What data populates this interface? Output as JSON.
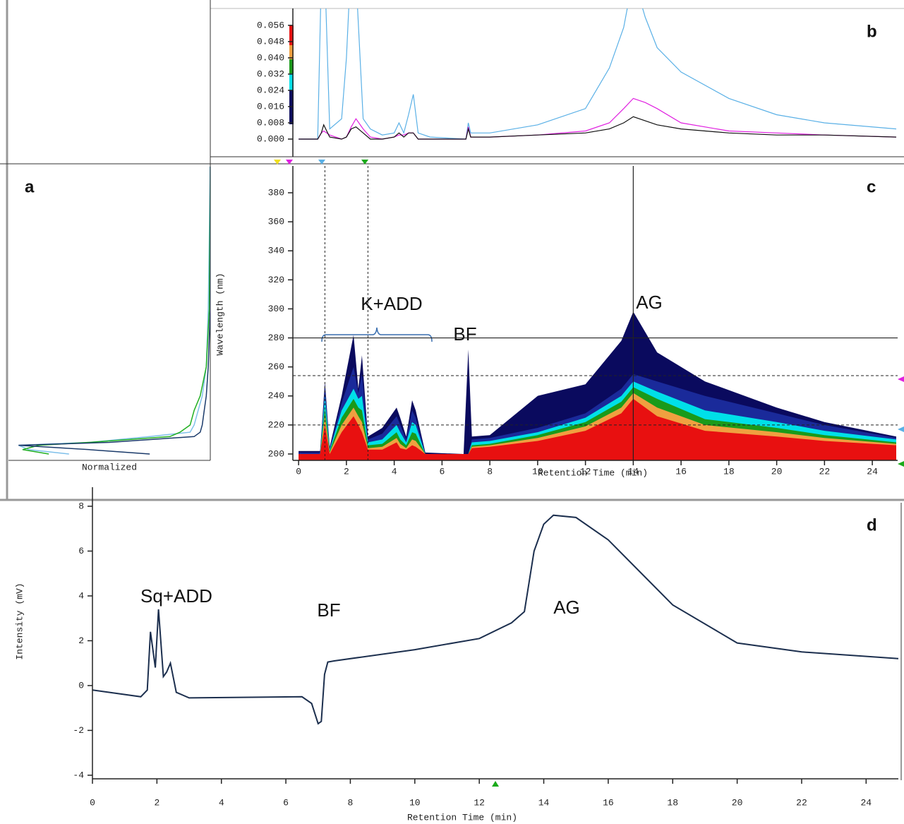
{
  "chart_data": [
    {
      "type": "spectrum",
      "label": "a",
      "xlabel": "Normalized",
      "xlim": [
        1,
        0
      ],
      "ylim": [
        195.6,
        398.5
      ],
      "y": [
        200,
        203,
        206,
        208,
        212,
        215,
        220,
        230,
        240,
        260,
        300,
        398
      ],
      "series": [
        {
          "color": "#7fc0ea",
          "values": [
            0.7,
            0.9,
            0.95,
            0.6,
            0.3,
            0.1,
            0.08,
            0.06,
            0.04,
            0.02,
            0.01,
            0
          ]
        },
        {
          "color": "#22b022",
          "values": [
            0.8,
            0.93,
            0.85,
            0.6,
            0.2,
            0.15,
            0.1,
            0.08,
            0.05,
            0.02,
            0.005,
            0
          ]
        },
        {
          "color": "#1a3a6a",
          "values": [
            0.3,
            0.6,
            0.95,
            0.5,
            0.08,
            0.05,
            0.04,
            0.03,
            0.02,
            0.01,
            0,
            0
          ]
        }
      ]
    },
    {
      "type": "line",
      "label": "b",
      "xlim": [
        -0.24,
        25.06
      ],
      "ylim": [
        -0.0087,
        0.0643
      ],
      "yticks": [
        {
          "value": 0,
          "label": "0.000"
        },
        {
          "value": 0.008,
          "label": "0.008"
        },
        {
          "value": 0.016,
          "label": "0.016"
        },
        {
          "value": 0.024,
          "label": "0.024"
        },
        {
          "value": 0.032,
          "label": "0.032"
        },
        {
          "value": 0.04,
          "label": "0.040"
        },
        {
          "value": 0.048,
          "label": "0.048"
        },
        {
          "value": 0.056,
          "label": "0.056"
        }
      ],
      "x": [
        0,
        0.8,
        0.95,
        1.05,
        1.3,
        1.8,
        2.0,
        2.2,
        2.4,
        2.7,
        3,
        3.5,
        4.0,
        4.2,
        4.4,
        4.6,
        4.8,
        5.0,
        5.5,
        7.0,
        7.1,
        7.2,
        8,
        10,
        12,
        13,
        13.6,
        14,
        14.5,
        15,
        16,
        18,
        20,
        22,
        25
      ],
      "series": [
        {
          "color": "#5ab0e6",
          "values": [
            0,
            0,
            0.08,
            0.1,
            0.005,
            0.01,
            0.04,
            0.09,
            0.08,
            0.01,
            0.005,
            0.002,
            0.003,
            0.008,
            0.003,
            0.012,
            0.022,
            0.003,
            0.001,
            0,
            0.008,
            0.003,
            0.003,
            0.007,
            0.015,
            0.035,
            0.055,
            0.08,
            0.06,
            0.045,
            0.033,
            0.02,
            0.012,
            0.008,
            0.005
          ]
        },
        {
          "color": "#e020e0",
          "values": [
            0,
            0,
            0.003,
            0.004,
            0.002,
            0,
            0.001,
            0.006,
            0.01,
            0.005,
            0.001,
            0,
            0.001,
            0.002,
            0.002,
            0.003,
            0.003,
            0,
            0,
            0,
            0.006,
            0.001,
            0.001,
            0.002,
            0.004,
            0.008,
            0.015,
            0.02,
            0.018,
            0.015,
            0.008,
            0.004,
            0.003,
            0.002,
            0.001
          ]
        },
        {
          "color": "#111111",
          "values": [
            0,
            0,
            0.003,
            0.007,
            0.001,
            0,
            0.001,
            0.005,
            0.006,
            0.003,
            0,
            0,
            0.001,
            0.003,
            0.001,
            0.003,
            0.003,
            0,
            0,
            0,
            0.005,
            0.001,
            0.001,
            0.002,
            0.003,
            0.005,
            0.008,
            0.011,
            0.009,
            0.007,
            0.005,
            0.003,
            0.002,
            0.002,
            0.001
          ]
        }
      ]
    },
    {
      "type": "contour",
      "label": "c",
      "xlabel": "Retention Time (min)",
      "ylabel": "Wavelength (nm)",
      "annotations": [
        "K+ADD",
        "BF",
        "AG"
      ],
      "xlim": [
        -0.24,
        25.06
      ],
      "ylim": [
        195.6,
        398.5
      ],
      "xticks": [
        0,
        2,
        4,
        6,
        8,
        10,
        12,
        14,
        16,
        18,
        20,
        22,
        24
      ],
      "yticks": [
        200,
        220,
        240,
        260,
        280,
        300,
        320,
        340,
        360,
        380
      ],
      "cursor": {
        "x": 14,
        "y": 280
      },
      "dashed_x": [
        1.1,
        2.9
      ],
      "dashed_y": [
        254,
        220
      ],
      "x": [
        0,
        0.9,
        1.1,
        1.3,
        1.8,
        2.3,
        2.5,
        2.65,
        2.9,
        3.5,
        4.1,
        4.25,
        4.5,
        4.75,
        4.9,
        5.3,
        6.9,
        7.1,
        7.25,
        8,
        10,
        12,
        13.5,
        14,
        15,
        17,
        20,
        22,
        25
      ],
      "series": [
        {
          "color": "#0a0a5e",
          "values": [
            202,
            202,
            250,
            205,
            240,
            282,
            245,
            268,
            212,
            218,
            232,
            225,
            212,
            237,
            230,
            201,
            200,
            272,
            212,
            213,
            240,
            248,
            278,
            298,
            270,
            250,
            232,
            222,
            212
          ]
        },
        {
          "color": "#1a2a9a",
          "values": [
            201,
            201,
            246,
            204,
            235,
            260,
            242,
            255,
            210,
            214,
            226,
            220,
            210,
            230,
            225,
            200,
            200,
            200,
            210,
            211,
            218,
            228,
            245,
            255,
            250,
            240,
            228,
            220,
            211
          ]
        },
        {
          "color": "#00e0e8",
          "values": [
            200,
            200,
            240,
            203,
            230,
            245,
            238,
            240,
            208,
            210,
            220,
            215,
            208,
            222,
            220,
            200,
            200,
            200,
            208,
            209,
            215,
            225,
            240,
            250,
            243,
            230,
            222,
            216,
            210
          ]
        },
        {
          "color": "#1a9a1a",
          "values": [
            200,
            200,
            232,
            202,
            225,
            238,
            232,
            230,
            206,
            207,
            215,
            210,
            206,
            215,
            214,
            200,
            200,
            200,
            206,
            207,
            213,
            222,
            236,
            246,
            238,
            224,
            218,
            213,
            208
          ]
        },
        {
          "color": "#f0a040",
          "values": [
            200,
            200,
            226,
            201,
            220,
            232,
            226,
            222,
            204,
            205,
            211,
            207,
            204,
            210,
            209,
            200,
            200,
            200,
            205,
            206,
            211,
            219,
            232,
            242,
            232,
            220,
            215,
            211,
            207
          ]
        },
        {
          "color": "#e81010",
          "values": [
            200,
            200,
            220,
            200,
            215,
            226,
            220,
            215,
            203,
            203,
            208,
            204,
            203,
            206,
            205,
            200,
            200,
            200,
            204,
            205,
            209,
            216,
            228,
            238,
            226,
            216,
            212,
            209,
            206
          ]
        }
      ]
    },
    {
      "type": "line",
      "label": "d",
      "xlabel": "Retention Time (min)",
      "ylabel": "Intensity (mV)",
      "annotations": [
        "Sq+ADD",
        "BF",
        "AG"
      ],
      "xlim": [
        0,
        25.0
      ],
      "ylim": [
        -4.16,
        8.85
      ],
      "xticks": [
        0,
        2,
        4,
        6,
        8,
        10,
        12,
        14,
        16,
        18,
        20,
        22,
        24
      ],
      "yticks": [
        -4,
        -2,
        0,
        2,
        4,
        6,
        8
      ],
      "x": [
        0,
        1.5,
        1.7,
        1.8,
        1.95,
        2.05,
        2.2,
        2.3,
        2.42,
        2.6,
        3,
        6.5,
        6.8,
        7,
        7.1,
        7.2,
        7.3,
        7.5,
        10,
        12,
        13,
        13.4,
        13.7,
        14,
        14.3,
        15,
        16,
        18,
        20,
        22,
        25
      ],
      "series": [
        {
          "color": "#1c2f4e",
          "values": [
            -0.2,
            -0.5,
            -0.2,
            2.4,
            0.8,
            3.4,
            0.4,
            0.6,
            1.0,
            -0.3,
            -0.55,
            -0.5,
            -0.8,
            -1.7,
            -1.6,
            0.5,
            1.05,
            1.1,
            1.6,
            2.1,
            2.8,
            3.3,
            6.0,
            7.2,
            7.6,
            7.5,
            6.5,
            3.6,
            1.9,
            1.5,
            1.2
          ]
        }
      ]
    }
  ]
}
